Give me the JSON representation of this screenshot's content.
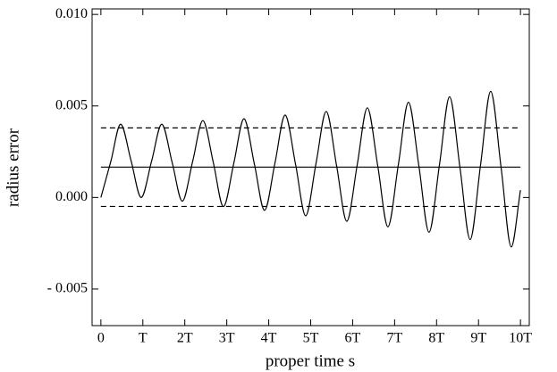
{
  "chart_data": {
    "type": "line",
    "xlabel": "proper time s",
    "ylabel": "radius error",
    "xlim": [
      -0.21,
      10.21
    ],
    "ylim": [
      -0.007,
      0.0103
    ],
    "xticks": [
      0,
      {
        "value": 1,
        "label": "T"
      },
      {
        "value": 2,
        "label": "2T"
      },
      {
        "value": 3,
        "label": "3T"
      },
      {
        "value": 4,
        "label": "4T"
      },
      {
        "value": 5,
        "label": "5T"
      },
      {
        "value": 6,
        "label": "6T"
      },
      {
        "value": 7,
        "label": "7T"
      },
      {
        "value": 8,
        "label": "8T"
      },
      {
        "value": 9,
        "label": "9T"
      },
      {
        "value": 10,
        "label": "10T"
      }
    ],
    "yticks": [
      {
        "value": 0.01,
        "label": "0.010"
      },
      {
        "value": 0.005,
        "label": "0.005"
      },
      {
        "value": 0,
        "label": "0.000"
      },
      {
        "value": -0.005,
        "label": "- 0.005"
      }
    ],
    "series": [
      {
        "color": "#000000",
        "dashed": false,
        "smooth": true,
        "x": [
          0,
          0.24,
          0.47,
          0.72,
          0.96,
          1.21,
          1.45,
          1.7,
          1.94,
          2.19,
          2.43,
          2.68,
          2.92,
          3.17,
          3.41,
          3.66,
          3.9,
          4.15,
          4.39,
          4.64,
          4.88,
          5.13,
          5.37,
          5.62,
          5.86,
          6.11,
          6.35,
          6.6,
          6.84,
          7.09,
          7.33,
          7.58,
          7.82,
          8.07,
          8.31,
          8.56,
          8.8,
          9.05,
          9.29,
          9.54,
          9.78,
          10.0
        ],
        "values": [
          0.0,
          0.002,
          0.004,
          0.002,
          0.0,
          0.002,
          0.004,
          0.0019,
          -0.0002,
          0.002,
          0.0042,
          0.0019,
          -0.0005,
          0.0019,
          0.0043,
          0.0018,
          -0.0007,
          0.0019,
          0.0045,
          0.0018,
          -0.001,
          0.0019,
          0.0047,
          0.0017,
          -0.0013,
          0.0018,
          0.0049,
          0.0017,
          -0.0016,
          0.0018,
          0.0052,
          0.0017,
          -0.0019,
          0.0018,
          0.0055,
          0.0016,
          -0.0023,
          0.0018,
          0.0058,
          0.0016,
          -0.0027,
          0.0004
        ]
      },
      {
        "color": "#000000",
        "dashed": false,
        "smooth": false,
        "x": [
          0,
          10
        ],
        "values": [
          0.00166,
          0.00166
        ]
      },
      {
        "color": "#000000",
        "dashed": true,
        "smooth": false,
        "x": [
          0,
          10
        ],
        "values": [
          0.0038,
          0.0038
        ]
      },
      {
        "color": "#000000",
        "dashed": true,
        "smooth": false,
        "x": [
          0,
          10
        ],
        "values": [
          -0.00049,
          -0.00049
        ]
      }
    ]
  }
}
